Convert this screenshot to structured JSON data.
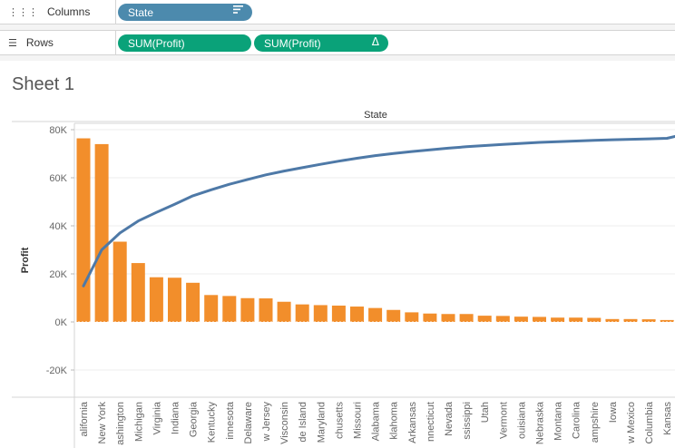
{
  "shelves": {
    "columns": {
      "label": "Columns",
      "icon": "columns-icon",
      "pills": [
        {
          "text": "State",
          "type": "dimension",
          "icon": "sort-descending-icon"
        }
      ]
    },
    "rows": {
      "label": "Rows",
      "icon": "rows-icon",
      "pills": [
        {
          "text": "SUM(Profit)",
          "type": "measure"
        },
        {
          "text": "SUM(Profit)",
          "type": "measure",
          "icon": "delta-table-calc-icon",
          "icon_glyph": "Δ"
        }
      ]
    }
  },
  "sheet": {
    "title": "Sheet 1"
  },
  "colors": {
    "bar": "#f28e2b",
    "line": "#4e79a7",
    "dimension_pill": "#4c8aad",
    "measure_pill": "#0aa279"
  },
  "chart_data": {
    "type": "bar",
    "header": "State",
    "ylabel": "Profit",
    "ylim": [
      -30000,
      80000
    ],
    "yticks": [
      {
        "value": 80000,
        "label": "80K"
      },
      {
        "value": 60000,
        "label": "60K"
      },
      {
        "value": 40000,
        "label": "40K"
      },
      {
        "value": 20000,
        "label": "20K"
      },
      {
        "value": 0,
        "label": "0K"
      },
      {
        "value": -20000,
        "label": "-20K"
      }
    ],
    "grid": true,
    "categories": [
      "California",
      "New York",
      "Washington",
      "Michigan",
      "Virginia",
      "Indiana",
      "Georgia",
      "Kentucky",
      "Minnesota",
      "Delaware",
      "New Jersey",
      "Wisconsin",
      "Rhode Island",
      "Maryland",
      "Massachusetts",
      "Missouri",
      "Alabama",
      "Oklahoma",
      "Arkansas",
      "Connecticut",
      "Nevada",
      "Mississippi",
      "Utah",
      "Vermont",
      "Louisiana",
      "Nebraska",
      "Montana",
      "South Carolina",
      "New Hampshire",
      "Iowa",
      "New Mexico",
      "District of Columbia",
      "Kansas"
    ],
    "category_labels": [
      "alifornia",
      "New York",
      "ashington",
      "Michigan",
      "Virginia",
      "Indiana",
      "Georgia",
      "Kentucky",
      "innesota",
      "Delaware",
      "w Jersey",
      "Visconsin",
      "de Island",
      "Maryland",
      "chusetts",
      "Missouri",
      "Alabama",
      "klahoma",
      "Arkansas",
      "nnecticut",
      "Nevada",
      "ssissippi",
      "Utah",
      "Vermont",
      "ouisiana",
      "Nebraska",
      "Montana",
      "Carolina",
      "ampshire",
      "Iowa",
      "w Mexico",
      "Columbia",
      "Kansas"
    ],
    "series": [
      {
        "type": "bar",
        "values": [
          76400,
          74000,
          33400,
          24500,
          18600,
          18400,
          16300,
          11200,
          10800,
          9900,
          9800,
          8400,
          7300,
          7000,
          6800,
          6400,
          5800,
          5000,
          4000,
          3500,
          3300,
          3300,
          2600,
          2500,
          2200,
          2100,
          1800,
          1800,
          1700,
          1200,
          1200,
          1100,
          800
        ]
      },
      {
        "type": "line",
        "values": [
          15000,
          30000,
          37000,
          42000,
          45600,
          49000,
          52500,
          55000,
          57300,
          59300,
          61200,
          62800,
          64200,
          65600,
          66900,
          68100,
          69200,
          70100,
          70900,
          71600,
          72300,
          72900,
          73400,
          73900,
          74300,
          74700,
          75000,
          75300,
          75600,
          75800,
          76000,
          76200,
          76400
        ]
      }
    ]
  }
}
